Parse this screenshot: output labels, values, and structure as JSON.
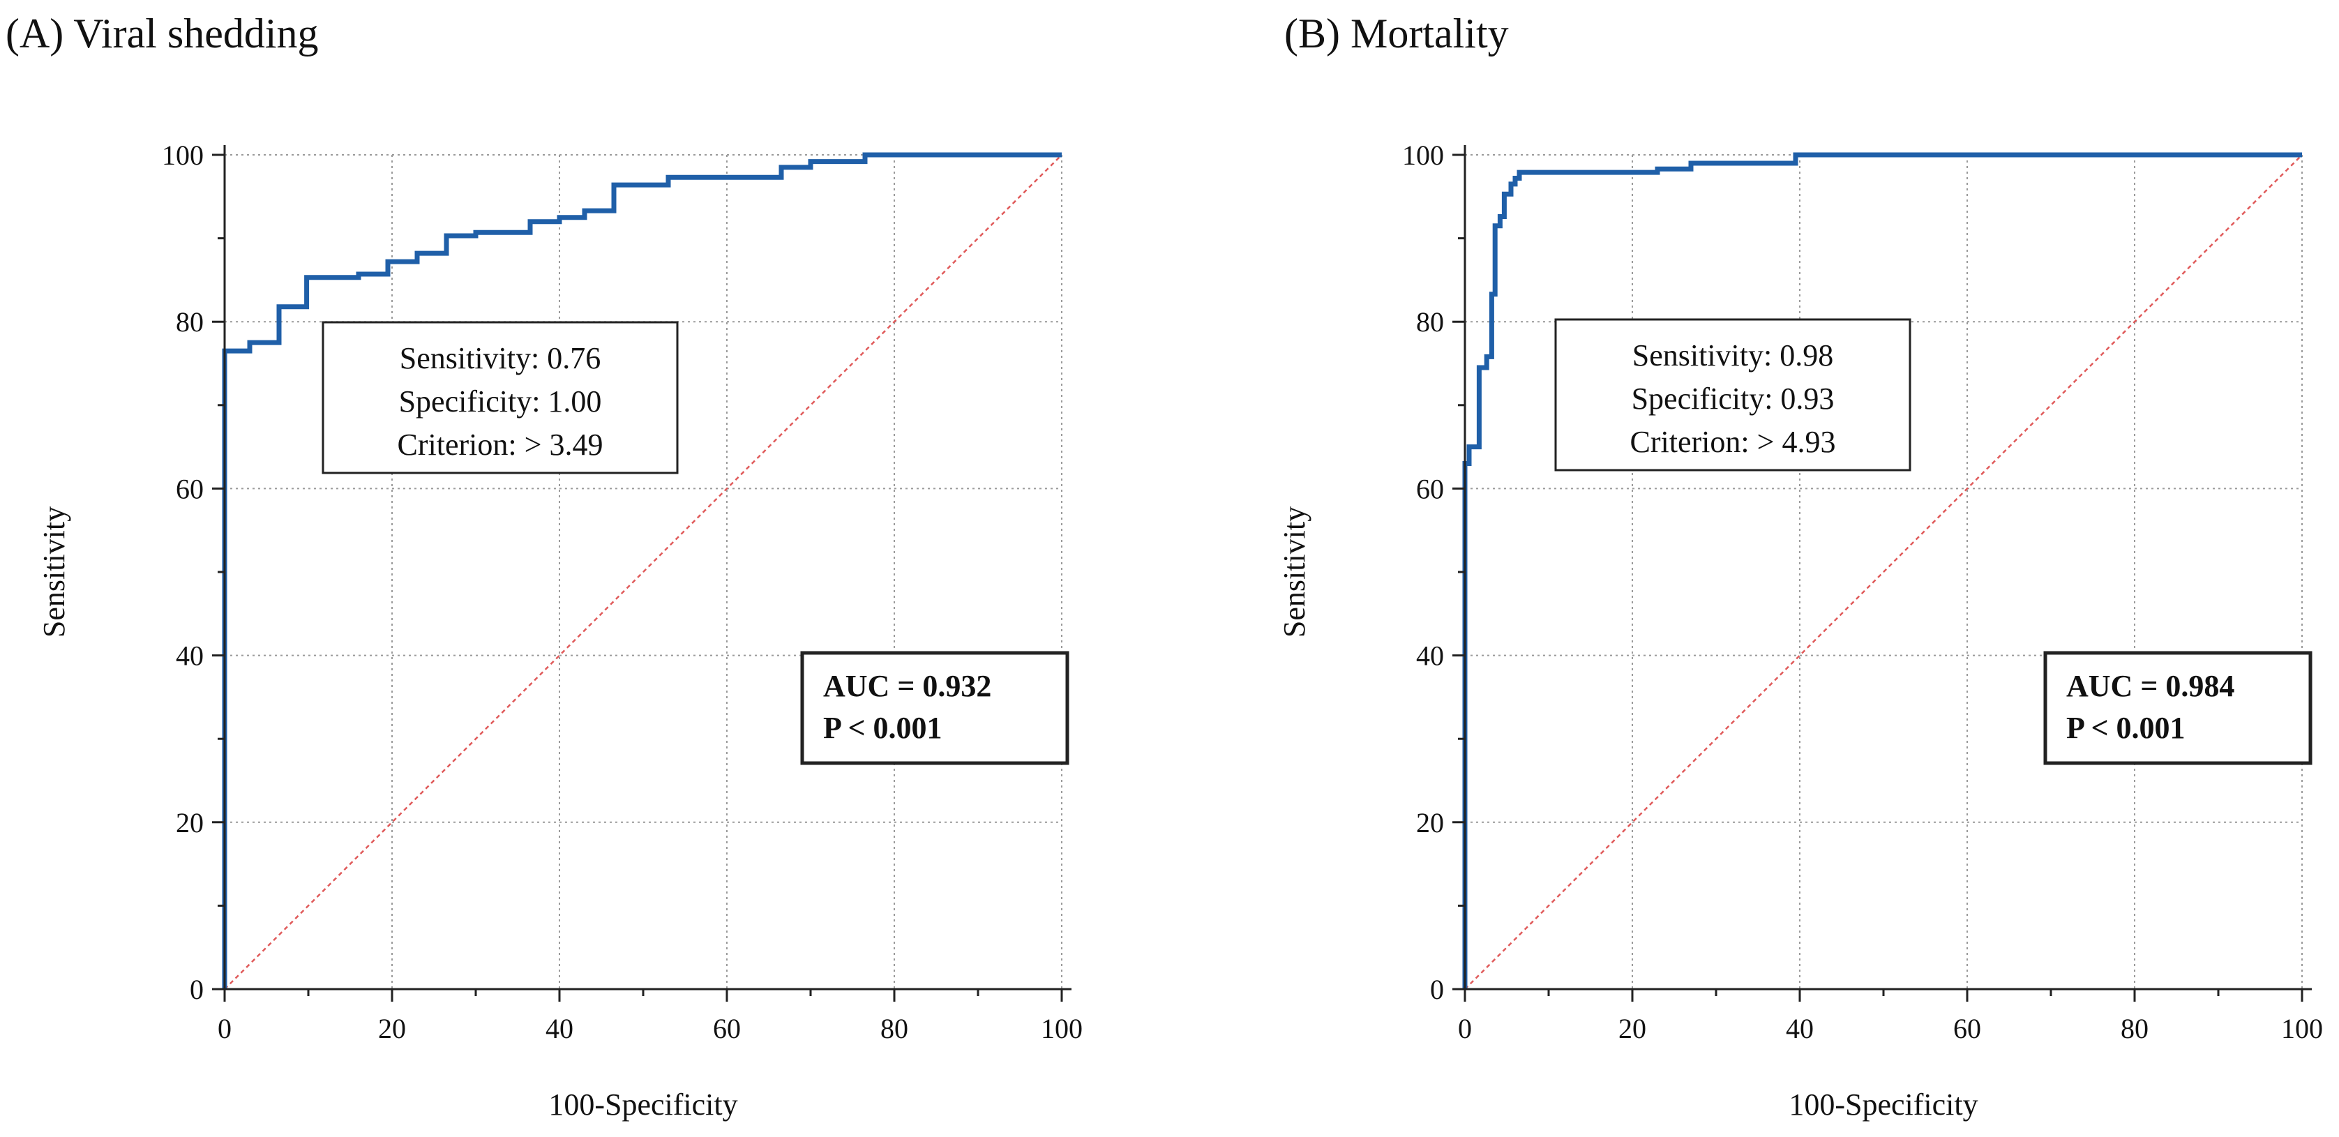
{
  "chart_data": [
    {
      "type": "line",
      "title": "(A) Viral shedding",
      "xlabel": "100-Specificity",
      "ylabel": "Sensitivity",
      "xlim": [
        0,
        100
      ],
      "ylim": [
        0,
        100
      ],
      "xticks": [
        0,
        20,
        40,
        60,
        80,
        100
      ],
      "yticks": [
        0,
        20,
        40,
        60,
        80,
        100
      ],
      "grid": true,
      "colors": {
        "roc": "#1f5fa8",
        "reference": "#e05a5a",
        "grid": "#9a9a9a"
      },
      "series": [
        {
          "name": "ROC curve",
          "points": [
            [
              0,
              0
            ],
            [
              0,
              76.5
            ],
            [
              3,
              76.5
            ],
            [
              3,
              77.5
            ],
            [
              6.5,
              77.5
            ],
            [
              6.5,
              81.8
            ],
            [
              9.8,
              81.8
            ],
            [
              9.8,
              85.3
            ],
            [
              16,
              85.3
            ],
            [
              16,
              85.7
            ],
            [
              19.5,
              85.7
            ],
            [
              19.5,
              87.2
            ],
            [
              23,
              87.2
            ],
            [
              23,
              88.2
            ],
            [
              26.5,
              88.2
            ],
            [
              26.5,
              90.3
            ],
            [
              30,
              90.3
            ],
            [
              30,
              90.7
            ],
            [
              36.5,
              90.7
            ],
            [
              36.5,
              92
            ],
            [
              40,
              92
            ],
            [
              40,
              92.5
            ],
            [
              43,
              92.5
            ],
            [
              43,
              93.3
            ],
            [
              46.5,
              93.3
            ],
            [
              46.5,
              96.4
            ],
            [
              53,
              96.4
            ],
            [
              53,
              97.3
            ],
            [
              66.5,
              97.3
            ],
            [
              66.5,
              98.5
            ],
            [
              70,
              98.5
            ],
            [
              70,
              99.2
            ],
            [
              76.5,
              99.2
            ],
            [
              76.5,
              100
            ],
            [
              100,
              100
            ]
          ]
        },
        {
          "name": "Reference line",
          "points": [
            [
              0,
              0
            ],
            [
              100,
              100
            ]
          ]
        }
      ],
      "annotations": {
        "criterion_box": [
          "Sensitivity: 0.76",
          "Specificity: 1.00",
          "Criterion: > 3.49"
        ],
        "auc_box": [
          "AUC = 0.932",
          "P < 0.001"
        ]
      }
    },
    {
      "type": "line",
      "title": "(B) Mortality",
      "xlabel": "100-Specificity",
      "ylabel": "Sensitivity",
      "xlim": [
        0,
        100
      ],
      "ylim": [
        0,
        100
      ],
      "xticks": [
        0,
        20,
        40,
        60,
        80,
        100
      ],
      "yticks": [
        0,
        20,
        40,
        60,
        80,
        100
      ],
      "grid": true,
      "colors": {
        "roc": "#1f5fa8",
        "reference": "#e05a5a",
        "grid": "#9a9a9a"
      },
      "series": [
        {
          "name": "ROC curve",
          "points": [
            [
              0,
              0
            ],
            [
              0,
              63
            ],
            [
              0.5,
              63
            ],
            [
              0.5,
              65
            ],
            [
              1.7,
              65
            ],
            [
              1.7,
              74.5
            ],
            [
              2.6,
              74.5
            ],
            [
              2.6,
              75.8
            ],
            [
              3.2,
              75.8
            ],
            [
              3.2,
              83.3
            ],
            [
              3.6,
              83.3
            ],
            [
              3.6,
              91.5
            ],
            [
              4.2,
              91.5
            ],
            [
              4.2,
              92.6
            ],
            [
              4.7,
              92.6
            ],
            [
              4.7,
              95.3
            ],
            [
              5.5,
              95.3
            ],
            [
              5.5,
              96.5
            ],
            [
              6,
              96.5
            ],
            [
              6,
              97.2
            ],
            [
              6.5,
              97.2
            ],
            [
              6.5,
              97.9
            ],
            [
              23,
              97.9
            ],
            [
              23,
              98.3
            ],
            [
              27,
              98.3
            ],
            [
              27,
              99
            ],
            [
              39.5,
              99
            ],
            [
              39.5,
              100
            ],
            [
              100,
              100
            ]
          ]
        },
        {
          "name": "Reference line",
          "points": [
            [
              0,
              0
            ],
            [
              100,
              100
            ]
          ]
        }
      ],
      "annotations": {
        "criterion_box": [
          "Sensitivity: 0.98",
          "Specificity: 0.93",
          "Criterion: > 4.93"
        ],
        "auc_box": [
          "AUC = 0.984",
          "P < 0.001"
        ]
      }
    }
  ]
}
